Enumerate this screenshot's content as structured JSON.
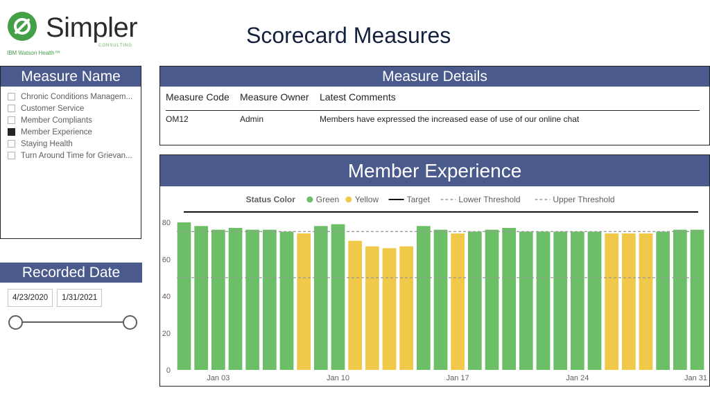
{
  "logo": {
    "brand": "Simpler",
    "sub": "CONSULTING",
    "tagline": "IBM Watson Health™",
    "colors": {
      "green": "#43a047",
      "text": "#2b2b2b"
    }
  },
  "page_title": "Scorecard Measures",
  "measure_filter": {
    "title": "Measure Name",
    "items": [
      {
        "label": "Chronic Conditions Managem...",
        "checked": false
      },
      {
        "label": "Customer Service",
        "checked": false
      },
      {
        "label": "Member Compliants",
        "checked": false
      },
      {
        "label": "Member Experience",
        "checked": true
      },
      {
        "label": "Staying Health",
        "checked": false
      },
      {
        "label": "Turn Around Time for Grievan...",
        "checked": false
      }
    ]
  },
  "date_filter": {
    "title": "Recorded Date",
    "start": "4/23/2020",
    "end": "1/31/2021"
  },
  "details": {
    "title": "Measure Details",
    "columns": [
      "Measure Code",
      "Measure Owner",
      "Latest Comments"
    ],
    "rows": [
      [
        "OM12",
        "Admin",
        "Members have expressed the increased ease of use of our online chat"
      ]
    ]
  },
  "chart_title": "Member Experience",
  "chart_data": {
    "type": "bar",
    "legend": {
      "title": "Status Color",
      "items": [
        {
          "label": "Green",
          "kind": "dot",
          "color": "#6dbf67"
        },
        {
          "label": "Yellow",
          "kind": "dot",
          "color": "#f0c94a"
        },
        {
          "label": "Target",
          "kind": "solid",
          "color": "#111111"
        },
        {
          "label": "Lower Threshold",
          "kind": "dash",
          "color": "#999999"
        },
        {
          "label": "Upper Threshold",
          "kind": "dash",
          "color": "#999999"
        }
      ],
      "placement": "top"
    },
    "x_ticks": [
      "Jan 03",
      "Jan 10",
      "Jan 17",
      "Jan 24",
      "Jan 31"
    ],
    "x_tick_days": [
      3,
      10,
      17,
      24,
      31
    ],
    "days": [
      1,
      2,
      3,
      4,
      5,
      6,
      7,
      8,
      9,
      10,
      11,
      12,
      13,
      14,
      15,
      16,
      17,
      18,
      19,
      20,
      21,
      22,
      23,
      24,
      25,
      26,
      27,
      28,
      29,
      30,
      31
    ],
    "values": [
      80,
      78,
      76,
      77,
      76,
      76,
      75,
      74,
      78,
      79,
      70,
      67,
      66,
      67,
      78,
      76,
      74,
      75,
      76,
      77,
      75,
      75,
      75,
      75,
      75,
      74,
      74,
      74,
      75,
      76,
      76
    ],
    "status": [
      "Green",
      "Green",
      "Green",
      "Green",
      "Green",
      "Green",
      "Green",
      "Yellow",
      "Green",
      "Green",
      "Yellow",
      "Yellow",
      "Yellow",
      "Yellow",
      "Green",
      "Green",
      "Yellow",
      "Green",
      "Green",
      "Green",
      "Green",
      "Green",
      "Green",
      "Green",
      "Green",
      "Yellow",
      "Yellow",
      "Yellow",
      "Green",
      "Green",
      "Green"
    ],
    "target": 85,
    "upper_threshold": 75,
    "lower_threshold": 50,
    "y_ticks": [
      0,
      20,
      40,
      60,
      80
    ],
    "ylim": [
      0,
      80
    ],
    "grid": false,
    "colors": {
      "Green": "#6dbf67",
      "Yellow": "#f0c94a"
    }
  }
}
